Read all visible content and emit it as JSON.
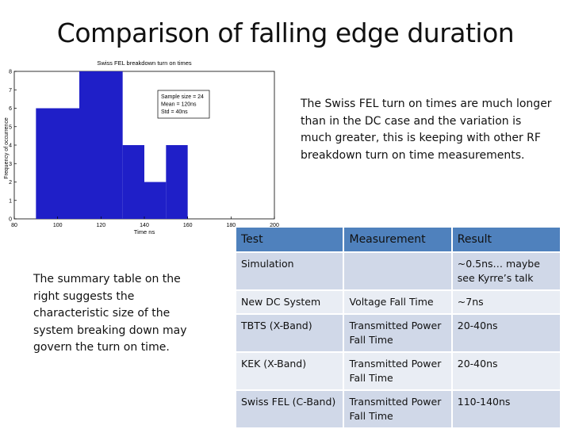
{
  "slide": {
    "title": "Comparison of falling edge duration",
    "description": "The Swiss FEL turn on times are much longer than in the DC case and the variation is much greater, this is keeping with other RF breakdown turn on time measurements.",
    "summary": "The summary table on the right suggests the characteristic size of the system breaking down may govern the turn on time."
  },
  "chart_data": {
    "type": "bar",
    "title": "Swiss FEL breakdown turn on times",
    "xlabel": "Time ns",
    "ylabel": "Frequency of occurrence",
    "xlim": [
      80,
      200
    ],
    "ylim": [
      0,
      8
    ],
    "xticks": [
      80,
      100,
      120,
      140,
      160,
      180,
      200
    ],
    "yticks": [
      0,
      1,
      2,
      3,
      4,
      5,
      6,
      7,
      8
    ],
    "bins": [
      {
        "start": 90,
        "end": 110,
        "count": 6
      },
      {
        "start": 110,
        "end": 130,
        "count": 8
      },
      {
        "start": 130,
        "end": 140,
        "count": 4
      },
      {
        "start": 140,
        "end": 150,
        "count": 2
      },
      {
        "start": 150,
        "end": 160,
        "count": 4
      }
    ],
    "bar_color": "#1f1fc8",
    "stats_box": [
      "Sample size = 24",
      "Mean = 120ns",
      "Std = 40ns"
    ]
  },
  "table": {
    "headers": [
      "Test",
      "Measurement",
      "Result"
    ],
    "header_color": "#4f81bd",
    "rows": [
      [
        "Simulation",
        "",
        "~0.5ns… maybe see Kyrre’s talk"
      ],
      [
        "New DC System",
        "Voltage Fall Time",
        "~7ns"
      ],
      [
        "TBTS (X-Band)",
        "Transmitted Power Fall Time",
        "20-40ns"
      ],
      [
        "KEK (X-Band)",
        "Transmitted Power Fall Time",
        "20-40ns"
      ],
      [
        "Swiss FEL (C-Band)",
        "Transmitted Power Fall Time",
        "110-140ns"
      ]
    ]
  }
}
